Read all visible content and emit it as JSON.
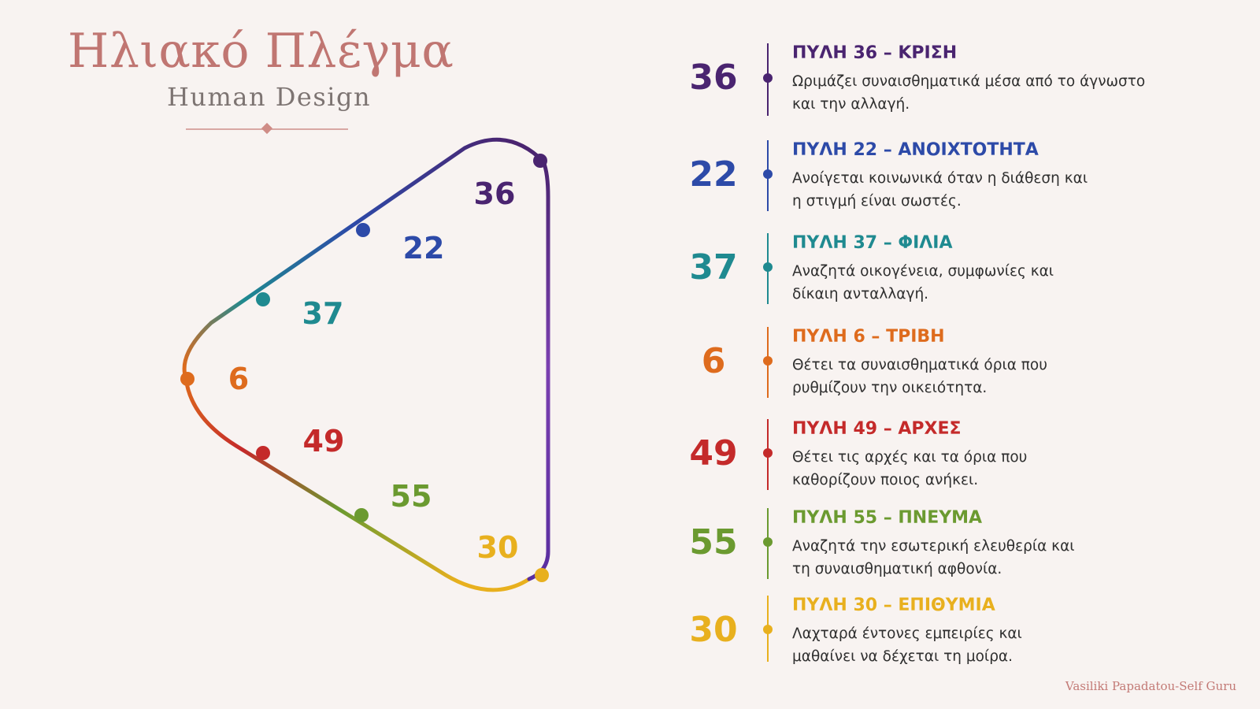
{
  "header": {
    "title": "Ηλιακό Πλέγμα",
    "subtitle": "Human Design"
  },
  "diagram": {
    "labels": [
      {
        "gate": "36",
        "color": "#4a2470"
      },
      {
        "gate": "22",
        "color": "#2d4aa8"
      },
      {
        "gate": "37",
        "color": "#1f8a90"
      },
      {
        "gate": "6",
        "color": "#de6b1d"
      },
      {
        "gate": "49",
        "color": "#c42a2a"
      },
      {
        "gate": "55",
        "color": "#6b9a30"
      },
      {
        "gate": "30",
        "color": "#e8b01e"
      }
    ]
  },
  "gates": [
    {
      "number": "36",
      "title": "ΠΥΛΗ 36 – ΚΡΙΣΗ",
      "desc1": "Ωριμάζει συναισθηματικά μέσα από το άγνωστο",
      "desc2": "και την αλλαγή.",
      "color": "#4a2470"
    },
    {
      "number": "22",
      "title": "ΠΥΛΗ 22 – ΑΝΟΙΧΤΟΤΗΤΑ",
      "desc1": "Ανοίγεται κοινωνικά όταν η διάθεση και",
      "desc2": "η στιγμή είναι σωστές.",
      "color": "#2d4aa8"
    },
    {
      "number": "37",
      "title": "ΠΥΛΗ 37 – ΦΙΛΙΑ",
      "desc1": "Αναζητά οικογένεια, συμφωνίες και",
      "desc2": "δίκαιη ανταλλαγή.",
      "color": "#1f8a90"
    },
    {
      "number": "6",
      "title": "ΠΥΛΗ 6 – ΤΡΙΒΗ",
      "desc1": "Θέτει τα συναισθηματικά όρια που",
      "desc2": "ρυθμίζουν την οικειότητα.",
      "color": "#de6b1d"
    },
    {
      "number": "49",
      "title": "ΠΥΛΗ 49 – ΑΡΧΕΣ",
      "desc1": "Θέτει τις αρχές και τα όρια που",
      "desc2": "καθορίζουν ποιος ανήκει.",
      "color": "#c42a2a"
    },
    {
      "number": "55",
      "title": "ΠΥΛΗ 55 – ΠΝΕΥΜΑ",
      "desc1": "Αναζητά την εσωτερική ελευθερία και",
      "desc2": "τη συναισθηματική αφθονία.",
      "color": "#6b9a30"
    },
    {
      "number": "30",
      "title": "ΠΥΛΗ 30 – ΕΠΙΘΥΜΙΑ",
      "desc1": "Λαχταρά έντονες εμπειρίες και",
      "desc2": "μαθαίνει να δέχεται τη μοίρα.",
      "color": "#e8b01e"
    }
  ],
  "signature": "Vasiliki Papadatou-Self Guru"
}
